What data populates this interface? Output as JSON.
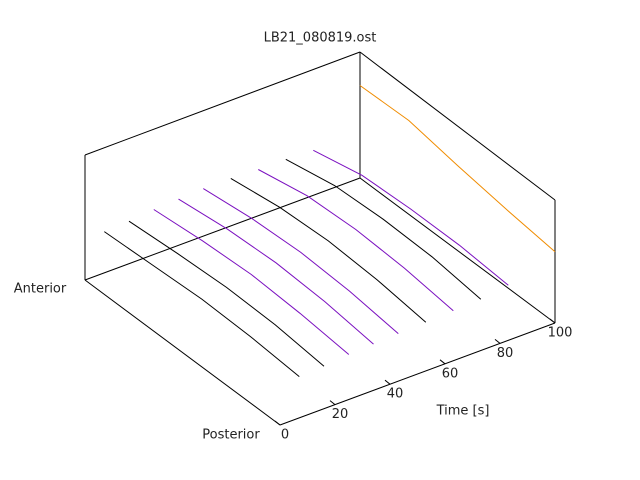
{
  "chart_data": {
    "type": "waterfall3d",
    "title": "LB21_080819.ost",
    "xlabel": "Time [s]",
    "xlim": [
      0,
      100
    ],
    "xticks": [
      0,
      20,
      40,
      60,
      80,
      100
    ],
    "depth_labels": [
      "Posterior",
      "Anterior"
    ],
    "positions": [
      0,
      0.25,
      0.5,
      0.75,
      1
    ],
    "zlim": [
      0,
      1
    ],
    "series": [
      {
        "time": 7,
        "color": "#000000",
        "values": [
          0.33,
          0.36,
          0.37,
          0.35,
          0.33
        ]
      },
      {
        "time": 16,
        "color": "#000000",
        "values": [
          0.34,
          0.38,
          0.39,
          0.37,
          0.34
        ]
      },
      {
        "time": 25,
        "color": "#7b10c0",
        "values": [
          0.36,
          0.4,
          0.42,
          0.4,
          0.36
        ]
      },
      {
        "time": 34,
        "color": "#7b10c0",
        "values": [
          0.37,
          0.42,
          0.44,
          0.42,
          0.37
        ]
      },
      {
        "time": 43,
        "color": "#7b10c0",
        "values": [
          0.38,
          0.43,
          0.45,
          0.43,
          0.38
        ]
      },
      {
        "time": 53,
        "color": "#000000",
        "values": [
          0.39,
          0.44,
          0.46,
          0.44,
          0.38
        ]
      },
      {
        "time": 63,
        "color": "#7b10c0",
        "values": [
          0.4,
          0.45,
          0.47,
          0.45,
          0.37
        ]
      },
      {
        "time": 73,
        "color": "#000000",
        "values": [
          0.41,
          0.46,
          0.47,
          0.45,
          0.37
        ]
      },
      {
        "time": 83,
        "color": "#7b10c0",
        "values": [
          0.44,
          0.47,
          0.47,
          0.45,
          0.36
        ]
      }
    ],
    "wall_profile": {
      "color": "#f08c00",
      "values": [
        0.57,
        0.62,
        0.68,
        0.75,
        0.74
      ]
    }
  }
}
